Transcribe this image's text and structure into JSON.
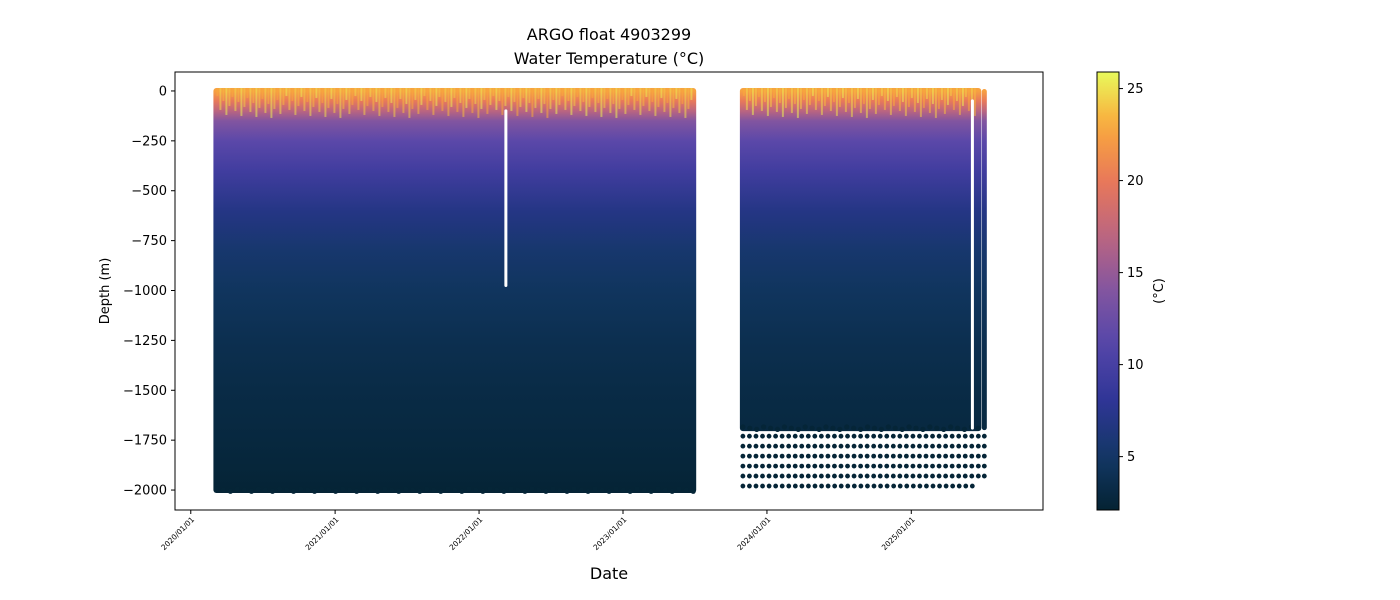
{
  "chart_data": {
    "type": "scatter",
    "title": "ARGO float 4903299",
    "subtitle": "Water Temperature (°C)",
    "xlabel": "Date",
    "ylabel": "Depth (m)",
    "colorbar_label": "(°C)",
    "colormap": "thermal",
    "clim": [
      2.1,
      25.9
    ],
    "xlim": [
      "2019-11-22",
      "2025-12-01"
    ],
    "ylim": [
      -2100,
      95
    ],
    "x_ticks": [
      "2020/01/01",
      "2021/01/01",
      "2022/01/01",
      "2023/01/01",
      "2024/01/01",
      "2025/01/01"
    ],
    "y_ticks": [
      0,
      -250,
      -500,
      -750,
      -1000,
      -1250,
      -1500,
      -1750,
      -2000
    ],
    "colorbar_ticks": [
      5,
      10,
      15,
      20,
      25
    ],
    "series": [
      {
        "date_start": "2020-03-06",
        "date_end": "2023-06-28",
        "max_depth": -2000,
        "profiles": "dense"
      },
      {
        "date_start": "2023-11-01",
        "date_end": "2025-06-20",
        "max_depth": -1690,
        "deep_levels": [
          -1730,
          -1780,
          -1830,
          -1880,
          -1930,
          -1980
        ],
        "profiles": "dense"
      }
    ],
    "temperature_profile": [
      {
        "depth": 0,
        "temp": 22.5
      },
      {
        "depth": -50,
        "temp": 20.0
      },
      {
        "depth": -100,
        "temp": 17.0
      },
      {
        "depth": -150,
        "temp": 14.0
      },
      {
        "depth": -250,
        "temp": 11.5
      },
      {
        "depth": -400,
        "temp": 9.5
      },
      {
        "depth": -600,
        "temp": 7.0
      },
      {
        "depth": -800,
        "temp": 5.5
      },
      {
        "depth": -1000,
        "temp": 4.6
      },
      {
        "depth": -1250,
        "temp": 3.8
      },
      {
        "depth": -1500,
        "temp": 3.2
      },
      {
        "depth": -1750,
        "temp": 2.8
      },
      {
        "depth": -2000,
        "temp": 2.3
      }
    ],
    "gaps": [
      {
        "date": "2022-03-10",
        "depth_top": -100,
        "depth_bottom": -975
      },
      {
        "date": "2025-06-05",
        "depth_top": -50,
        "depth_bottom": -1690
      }
    ],
    "grid": false
  }
}
